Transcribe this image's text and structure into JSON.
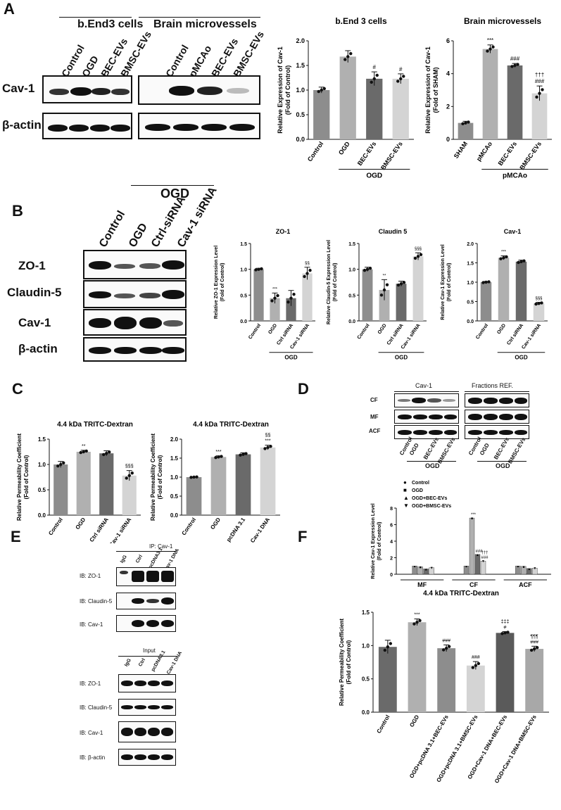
{
  "panels": {
    "A": "A",
    "B": "B",
    "C": "C",
    "D": "D",
    "E": "E",
    "F": "F"
  },
  "A": {
    "group_bend3": "b.End3 cells",
    "group_brain": "Brain microvessels",
    "lanes_left": [
      "Control",
      "OGD",
      "BEC-EVs",
      "BMSC-EVs"
    ],
    "lanes_right": [
      "Control",
      "pMCAo",
      "BEC-EVs",
      "BMSC-EVs"
    ],
    "rows": [
      "Cav-1",
      "β-actin"
    ]
  },
  "B": {
    "ogd_header": "OGD",
    "lanes": [
      "Control",
      "OGD",
      "Ctrl-siRNA",
      "Cav-1 siRNA"
    ],
    "rows": [
      "ZO-1",
      "Claudin-5",
      "Cav-1",
      "β-actin"
    ]
  },
  "D": {
    "blot_cav": "Cav-1",
    "blot_ref": "Fractions REF.",
    "rows": [
      "CF",
      "MF",
      "ACF"
    ],
    "lanes": [
      "Control",
      "OGD",
      "BEC-EVs",
      "BMSC-EVs"
    ],
    "ogd": "OGD"
  },
  "E": {
    "ip_header": "IP: Cav-1",
    "input_header": "Input",
    "lanes": [
      "IgG",
      "Ctrl",
      "pcDNA3.1",
      "Cav-1 DNA"
    ],
    "ip_rows": [
      "IB: ZO-1",
      "IB: Claudin-5",
      "IB: Cav-1"
    ],
    "input_rows": [
      "IB: ZO-1",
      "IB: Claudin-5",
      "IB: Cav-1",
      "IB: β-actin"
    ]
  },
  "chart_data": [
    {
      "id": "A1",
      "type": "bar",
      "title": "b.End 3 cells",
      "ylabel": "Relative Expression of Cav-1\n(Fold of Control)",
      "categories": [
        "Control",
        "OGD",
        "BEC-EVs",
        "BMSC-EVs"
      ],
      "values": [
        1.0,
        1.68,
        1.23,
        1.23
      ],
      "errors": [
        0.06,
        0.12,
        0.14,
        0.1
      ],
      "colors": [
        "#8d8d8d",
        "#b0b0b0",
        "#6a6a6a",
        "#d4d4d4"
      ],
      "ylim": [
        0,
        2.0
      ],
      "yticks": [
        0,
        0.5,
        1.0,
        1.5,
        2.0
      ],
      "annotations": [
        "",
        "",
        "#",
        "#"
      ],
      "group": "OGD",
      "group_from": 1,
      "group_to": 3
    },
    {
      "id": "A2",
      "type": "bar",
      "title": "Brain microvessels",
      "ylabel": "Relative Expression of Cav-1\n(Fold of SHAM)",
      "categories": [
        "SHAM",
        "pMCAo",
        "BEC-EVs",
        "BMSC-EVs"
      ],
      "values": [
        1.0,
        5.5,
        4.5,
        2.8
      ],
      "errors": [
        0.1,
        0.25,
        0.12,
        0.45
      ],
      "colors": [
        "#8d8d8d",
        "#b0b0b0",
        "#6a6a6a",
        "#d4d4d4"
      ],
      "ylim": [
        0,
        6
      ],
      "yticks": [
        0,
        2,
        4,
        6
      ],
      "annotations": [
        "",
        "***",
        "###",
        "†††\n###"
      ],
      "group": "pMCAo",
      "group_from": 1,
      "group_to": 3
    },
    {
      "id": "B1",
      "type": "bar",
      "title": "ZO-1",
      "ylabel": "Relative ZO-1 Expression Level\n(Fold of Control)",
      "categories": [
        "Control",
        "OGD",
        "Ctrl siRNA",
        "Cav-1 siRNA"
      ],
      "values": [
        1.0,
        0.44,
        0.44,
        0.92
      ],
      "errors": [
        0.02,
        0.1,
        0.15,
        0.12
      ],
      "colors": [
        "#8d8d8d",
        "#b0b0b0",
        "#6a6a6a",
        "#d4d4d4"
      ],
      "ylim": [
        0,
        1.5
      ],
      "yticks": [
        0,
        0.5,
        1.0,
        1.5
      ],
      "annotations": [
        "",
        "***",
        "",
        "§§"
      ],
      "group": "OGD",
      "group_from": 1,
      "group_to": 3
    },
    {
      "id": "B2",
      "type": "bar",
      "title": "Claudin 5",
      "ylabel": "Relative Claudin-5 Expression Level\n(Fold of Control)",
      "categories": [
        "Control",
        "OGD",
        "Ctrl siRNA",
        "Cav-1 siRNA"
      ],
      "values": [
        1.0,
        0.6,
        0.72,
        1.25
      ],
      "errors": [
        0.04,
        0.2,
        0.05,
        0.07
      ],
      "colors": [
        "#8d8d8d",
        "#b0b0b0",
        "#6a6a6a",
        "#d4d4d4"
      ],
      "ylim": [
        0,
        1.5
      ],
      "yticks": [
        0,
        0.5,
        1.0,
        1.5
      ],
      "annotations": [
        "",
        "**",
        "",
        "§§§"
      ],
      "group": "OGD",
      "group_from": 1,
      "group_to": 3
    },
    {
      "id": "B3",
      "type": "bar",
      "title": "Cav-1",
      "ylabel": "Relative Cav-1 Expression Level\n(Fold of Control)",
      "categories": [
        "Control",
        "OGD",
        "Ctrl siRNA",
        "Cav-1 siRNA"
      ],
      "values": [
        1.0,
        1.63,
        1.53,
        0.45
      ],
      "errors": [
        0.02,
        0.05,
        0.04,
        0.03
      ],
      "colors": [
        "#8d8d8d",
        "#b0b0b0",
        "#6a6a6a",
        "#d4d4d4"
      ],
      "ylim": [
        0,
        2.0
      ],
      "yticks": [
        0,
        0.5,
        1.0,
        1.5,
        2.0
      ],
      "annotations": [
        "",
        "***",
        "",
        "§§§"
      ],
      "group": "OGD",
      "group_from": 1,
      "group_to": 3
    },
    {
      "id": "C1",
      "type": "bar",
      "title": "4.4 kDa TRITC-Dextran",
      "ylabel": "Relative Permeability Coefficient\n(Fold of Control)",
      "categories": [
        "Control",
        "OGD",
        "Ctrl siRNA",
        "Cav-1 siRNA"
      ],
      "values": [
        1.0,
        1.25,
        1.22,
        0.78
      ],
      "errors": [
        0.06,
        0.03,
        0.05,
        0.1
      ],
      "colors": [
        "#8d8d8d",
        "#b0b0b0",
        "#6a6a6a",
        "#d4d4d4"
      ],
      "ylim": [
        0,
        1.5
      ],
      "yticks": [
        0,
        0.5,
        1.0,
        1.5
      ],
      "annotations": [
        "",
        "**",
        "",
        "§§§"
      ],
      "group": "OGD",
      "group_from": 1,
      "group_to": 3
    },
    {
      "id": "C2",
      "type": "bar",
      "title": "4.4 kDa TRITC-Dextran",
      "ylabel": "Relative Permeability Coefficient\n(Fold of Control)",
      "categories": [
        "Control",
        "OGD",
        "pcDNA 3.1",
        "Cav-1 DNA"
      ],
      "values": [
        1.0,
        1.53,
        1.6,
        1.78
      ],
      "errors": [
        0.01,
        0.03,
        0.04,
        0.06
      ],
      "colors": [
        "#8d8d8d",
        "#b0b0b0",
        "#6a6a6a",
        "#d4d4d4"
      ],
      "ylim": [
        0,
        2.0
      ],
      "yticks": [
        0,
        0.5,
        1.0,
        1.5,
        2.0
      ],
      "annotations": [
        "",
        "***",
        "",
        "§§\n***"
      ],
      "group": "OGD",
      "group_from": 1,
      "group_to": 3
    },
    {
      "id": "D1",
      "type": "bar",
      "ylabel": "Relative Cav-1 Expression Level\n(Fold of Control)",
      "categories": [
        "MF",
        "CF",
        "ACF"
      ],
      "series": [
        {
          "name": "Control",
          "values": [
            1.0,
            1.0,
            1.0
          ],
          "color": "#8d8d8d",
          "marker": "●"
        },
        {
          "name": "OGD",
          "values": [
            0.9,
            6.8,
            0.95
          ],
          "color": "#b0b0b0",
          "marker": "■"
        },
        {
          "name": "OGD+BEC-EVs",
          "values": [
            0.65,
            2.4,
            0.7
          ],
          "color": "#6a6a6a",
          "marker": "▲"
        },
        {
          "name": "OGD+BMSC-EVs",
          "values": [
            0.8,
            1.6,
            0.75
          ],
          "color": "#d4d4d4",
          "marker": "▼"
        }
      ],
      "ylim": [
        0,
        8
      ],
      "yticks": [
        0,
        2,
        4,
        6,
        8
      ],
      "annotations_cf": [
        "",
        "***",
        "###",
        "†††\n###"
      ]
    },
    {
      "id": "F1",
      "type": "bar",
      "title": "4.4 kDa TRITC-Dextran",
      "ylabel": "Relative Permeability Coefficient\n(Fold of Control)",
      "categories": [
        "Control",
        "OGD",
        "OGD+pcDNA 3.1+BEC-EVs",
        "OGD+pcDNA 3.1+BMSC-EVs",
        "OGD+Cav-1 DNA+BEC-EVs",
        "OGD+Cav-1 DNA+BMSC-EVs"
      ],
      "values": [
        0.98,
        1.35,
        0.96,
        0.7,
        1.19,
        0.95
      ],
      "errors": [
        0.1,
        0.05,
        0.05,
        0.06,
        0.02,
        0.04
      ],
      "colors": [
        "#6a6a6a",
        "#b0b0b0",
        "#8d8d8d",
        "#d4d4d4",
        "#5a5a5a",
        "#a8a8a8"
      ],
      "ylim": [
        0,
        1.5
      ],
      "yticks": [
        0,
        0.5,
        1.0,
        1.5
      ],
      "annotations": [
        "",
        "***",
        "###",
        "###",
        "‡‡‡\n#",
        "¶¶¶\n###"
      ]
    }
  ]
}
